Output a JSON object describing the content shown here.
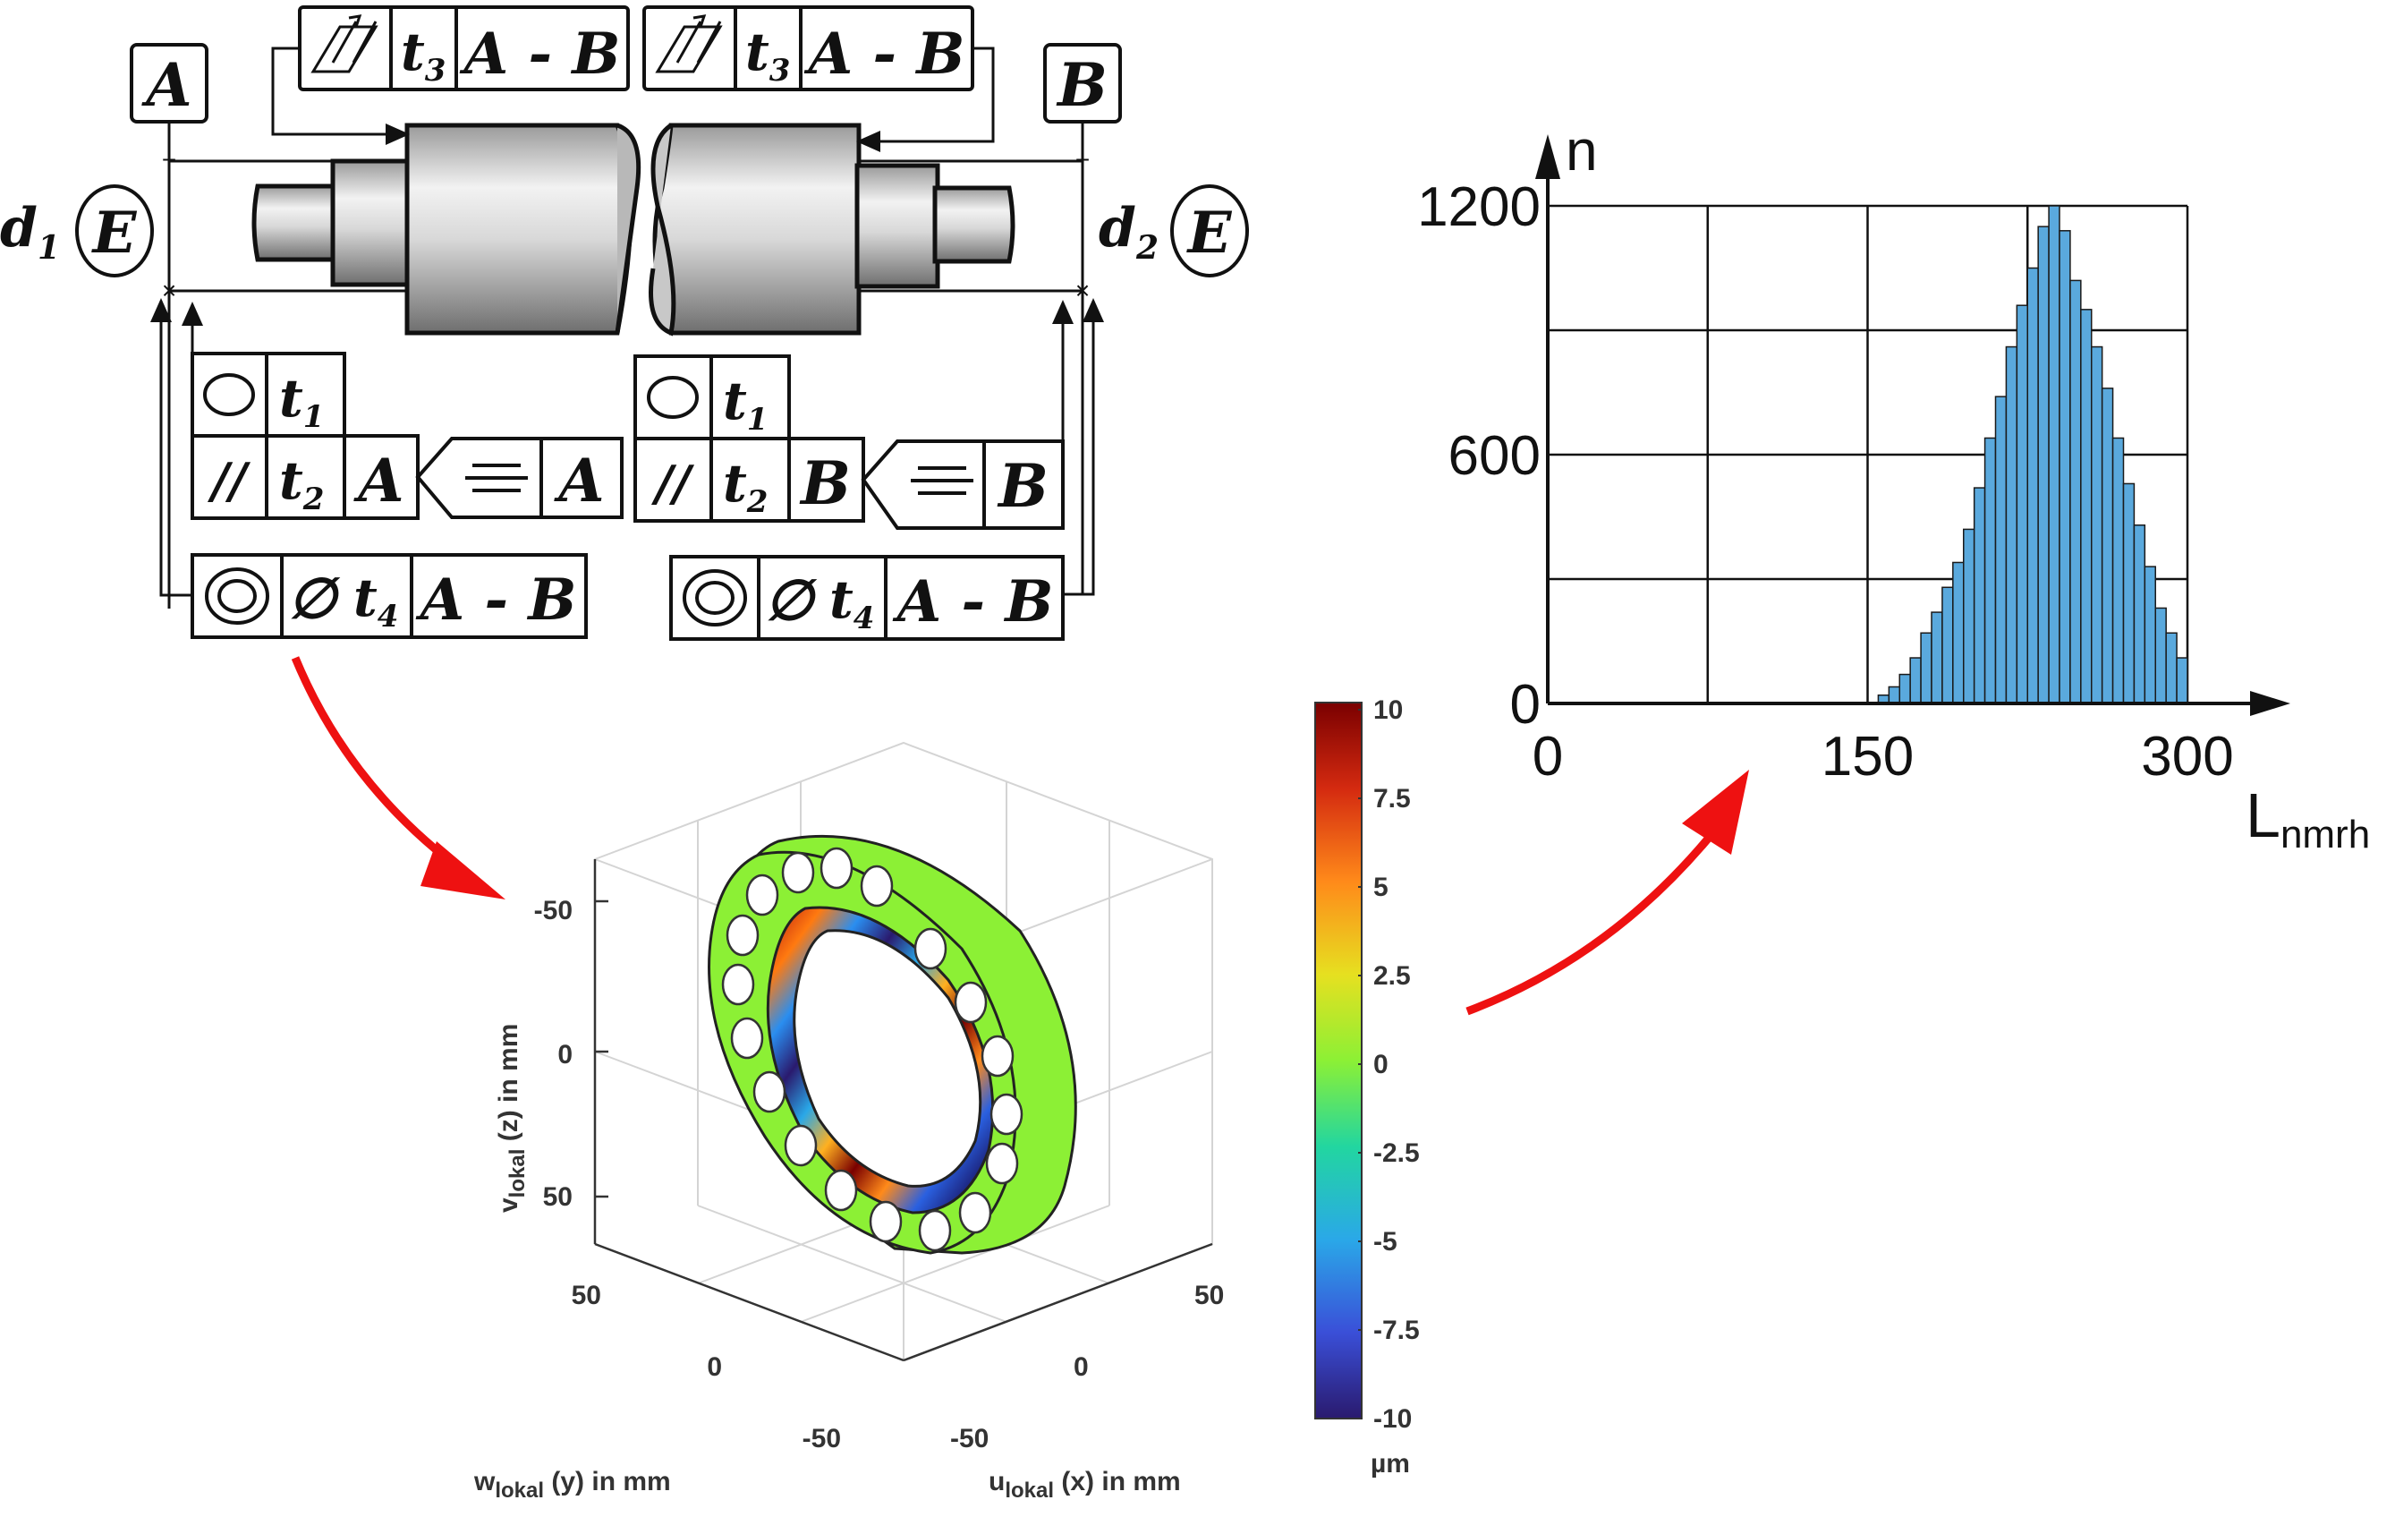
{
  "drawing": {
    "datum_left": "A",
    "datum_right": "B",
    "envelope": "E",
    "d1": "d",
    "d1_sub": "1",
    "d2": "d",
    "d2_sub": "2",
    "runout_top_left": {
      "symbol": "total-runout-icon",
      "tol": "t",
      "tol_sub": "3",
      "ref": "A - B"
    },
    "runout_top_right": {
      "symbol": "total-runout-icon",
      "tol": "t",
      "tol_sub": "3",
      "ref": "A - B"
    },
    "frame_left": {
      "roundness": {
        "symbol": "circle-icon",
        "tol": "t",
        "tol_sub": "1"
      },
      "parallel": {
        "symbol": "//",
        "tol": "t",
        "tol_sub": "2",
        "ref": "A"
      },
      "symmetry": {
        "symbol": "symmetry-icon",
        "ref": "A"
      },
      "coaxial": {
        "symbol": "concentric-icon",
        "dia": "∅",
        "tol": "t",
        "tol_sub": "4",
        "ref": "A - B"
      }
    },
    "frame_right": {
      "roundness": {
        "symbol": "circle-icon",
        "tol": "t",
        "tol_sub": "1"
      },
      "parallel": {
        "symbol": "//",
        "tol": "t",
        "tol_sub": "2",
        "ref": "B"
      },
      "symmetry": {
        "symbol": "symmetry-icon",
        "ref": "B"
      },
      "coaxial": {
        "symbol": "concentric-icon",
        "dia": "∅",
        "tol": "t",
        "tol_sub": "4",
        "ref": "A - B"
      }
    }
  },
  "bearing_plot": {
    "z_label": "v",
    "z_label_sub": "lokal",
    "z_label_rest": " (z) in mm",
    "y_label": "w",
    "y_label_sub": "lokal",
    "y_label_rest": " (y) in mm",
    "x_label": "u",
    "x_label_sub": "lokal",
    "x_label_rest": " (x) in mm",
    "z_ticks": [
      "-50",
      "0",
      "50"
    ],
    "y_ticks": [
      "50",
      "0",
      "-50"
    ],
    "x_ticks": [
      "50",
      "0",
      "-50"
    ],
    "colorbar_ticks": [
      "10",
      "7.5",
      "5",
      "2.5",
      "0",
      "-2.5",
      "-5",
      "-7.5",
      "-10"
    ],
    "colorbar_unit": "µm",
    "colors": {
      "ring": "#8cf035",
      "high": "#7a0000",
      "low": "#2a1a6e"
    }
  },
  "chart_data": {
    "type": "bar",
    "ylabel": "n",
    "xlabel": "L",
    "xlabel_sub": "nmrh",
    "x_ticks": [
      0,
      150,
      300
    ],
    "y_ticks": [
      0,
      600,
      1200
    ],
    "xlim": [
      0,
      300
    ],
    "ylim": [
      0,
      1200
    ],
    "bar_color": "#5aa9dd",
    "bin_width": 5,
    "x": [
      155,
      160,
      165,
      170,
      175,
      180,
      185,
      190,
      195,
      200,
      205,
      210,
      215,
      220,
      225,
      230,
      235,
      240,
      245,
      250,
      255,
      260,
      265,
      270,
      275,
      280,
      285,
      290,
      295
    ],
    "values": [
      20,
      40,
      70,
      110,
      170,
      220,
      280,
      340,
      420,
      520,
      640,
      740,
      860,
      960,
      1050,
      1150,
      1200,
      1140,
      1020,
      950,
      860,
      760,
      640,
      530,
      430,
      330,
      230,
      170,
      110
    ]
  }
}
